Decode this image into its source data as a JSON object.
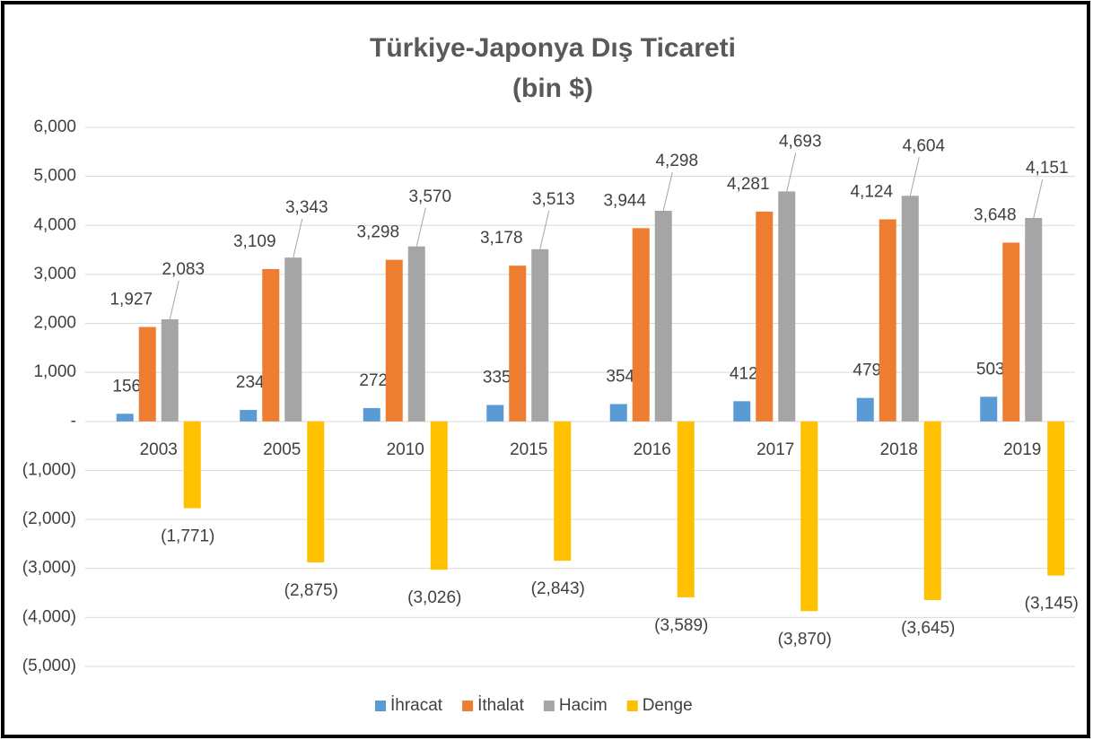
{
  "chart_data": {
    "type": "bar",
    "title": "Türkiye-Japonya Dış Ticareti",
    "subtitle": "(bin $)",
    "categories": [
      "2003",
      "2005",
      "2010",
      "2015",
      "2016",
      "2017",
      "2018",
      "2019"
    ],
    "series": [
      {
        "name": "İhracat",
        "color": "#5b9bd5",
        "values": [
          156,
          234,
          272,
          335,
          354,
          412,
          479,
          503
        ],
        "value_labels": [
          "156",
          "234",
          "272",
          "335",
          "354",
          "412",
          "479",
          "503"
        ]
      },
      {
        "name": "İthalat",
        "color": "#ed7d31",
        "values": [
          1927,
          3109,
          3298,
          3178,
          3944,
          4281,
          4124,
          3648
        ],
        "value_labels": [
          "1,927",
          "3,109",
          "3,298",
          "3,178",
          "3,944",
          "4,281",
          "4,124",
          "3,648"
        ]
      },
      {
        "name": "Hacim",
        "color": "#a5a5a5",
        "values": [
          2083,
          3343,
          3570,
          3513,
          4298,
          4693,
          4604,
          4151
        ],
        "value_labels": [
          "2,083",
          "3,343",
          "3,570",
          "3,513",
          "4,298",
          "4,693",
          "4,604",
          "4,151"
        ]
      },
      {
        "name": "Denge",
        "color": "#ffc000",
        "values": [
          -1771,
          -2875,
          -3026,
          -2843,
          -3589,
          -3870,
          -3645,
          -3145
        ],
        "value_labels": [
          "(1,771)",
          "(2,875)",
          "(3,026)",
          "(2,843)",
          "(3,589)",
          "(3,870)",
          "(3,645)",
          "(3,145)"
        ]
      }
    ],
    "ylim": [
      -5000,
      6000
    ],
    "yticks": [
      {
        "value": 6000,
        "label": "6,000"
      },
      {
        "value": 5000,
        "label": "5,000"
      },
      {
        "value": 4000,
        "label": "4,000"
      },
      {
        "value": 3000,
        "label": "3,000"
      },
      {
        "value": 2000,
        "label": "2,000"
      },
      {
        "value": 1000,
        "label": "1,000"
      },
      {
        "value": 0,
        "label": "-"
      },
      {
        "value": -1000,
        "label": "(1,000)"
      },
      {
        "value": -2000,
        "label": "(2,000)"
      },
      {
        "value": -3000,
        "label": "(3,000)"
      },
      {
        "value": -4000,
        "label": "(4,000)"
      },
      {
        "value": -5000,
        "label": "(5,000)"
      }
    ],
    "grid": true,
    "legend": "bottom"
  }
}
